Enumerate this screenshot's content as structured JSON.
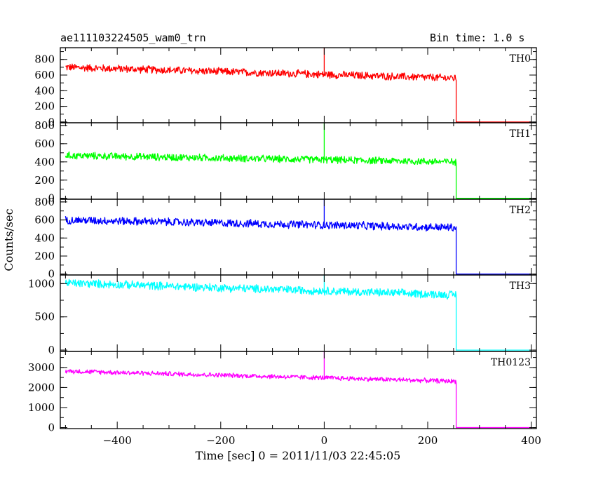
{
  "header": {
    "title": "ae111103224505_wam0_trn",
    "bin_time": "Bin time: 1.0 s"
  },
  "chart_data": {
    "type": "line",
    "xlabel": "Time [sec] 0 = 2011/11/03 22:45:05",
    "ylabel": "Counts/sec",
    "xlim": [
      -510,
      410
    ],
    "x_ticks": [
      -400,
      -200,
      0,
      200,
      400
    ],
    "x_tick_labels": [
      "−400",
      "−200",
      "0",
      "200",
      "400"
    ],
    "x_data_range": [
      -500,
      400
    ],
    "step_time": 255,
    "spike_time": 0,
    "panels": [
      {
        "name": "TH0",
        "color": "#ff0000",
        "ylim": [
          -10,
          950
        ],
        "yticks": [
          0,
          200,
          400,
          600,
          800
        ],
        "start": 700,
        "end": 560,
        "noise": 55,
        "spike": 950,
        "after": 0
      },
      {
        "name": "TH1",
        "color": "#00ff00",
        "ylim": [
          -10,
          830
        ],
        "yticks": [
          0,
          200,
          400,
          600,
          800
        ],
        "start": 470,
        "end": 400,
        "noise": 45,
        "spike": 830,
        "after": 0
      },
      {
        "name": "TH2",
        "color": "#0000ff",
        "ylim": [
          -10,
          830
        ],
        "yticks": [
          0,
          200,
          400,
          600,
          800
        ],
        "start": 600,
        "end": 515,
        "noise": 50,
        "spike": 830,
        "after": 0
      },
      {
        "name": "TH3",
        "color": "#00ffff",
        "ylim": [
          -20,
          1130
        ],
        "yticks": [
          0,
          500,
          1000
        ],
        "start": 1010,
        "end": 830,
        "noise": 70,
        "spike": 1130,
        "after": 0
      },
      {
        "name": "TH0123",
        "color": "#ff00ff",
        "ylim": [
          -50,
          3800
        ],
        "yticks": [
          0,
          1000,
          2000,
          3000
        ],
        "start": 2820,
        "end": 2310,
        "noise": 130,
        "spike": 3800,
        "after": 0
      }
    ]
  }
}
